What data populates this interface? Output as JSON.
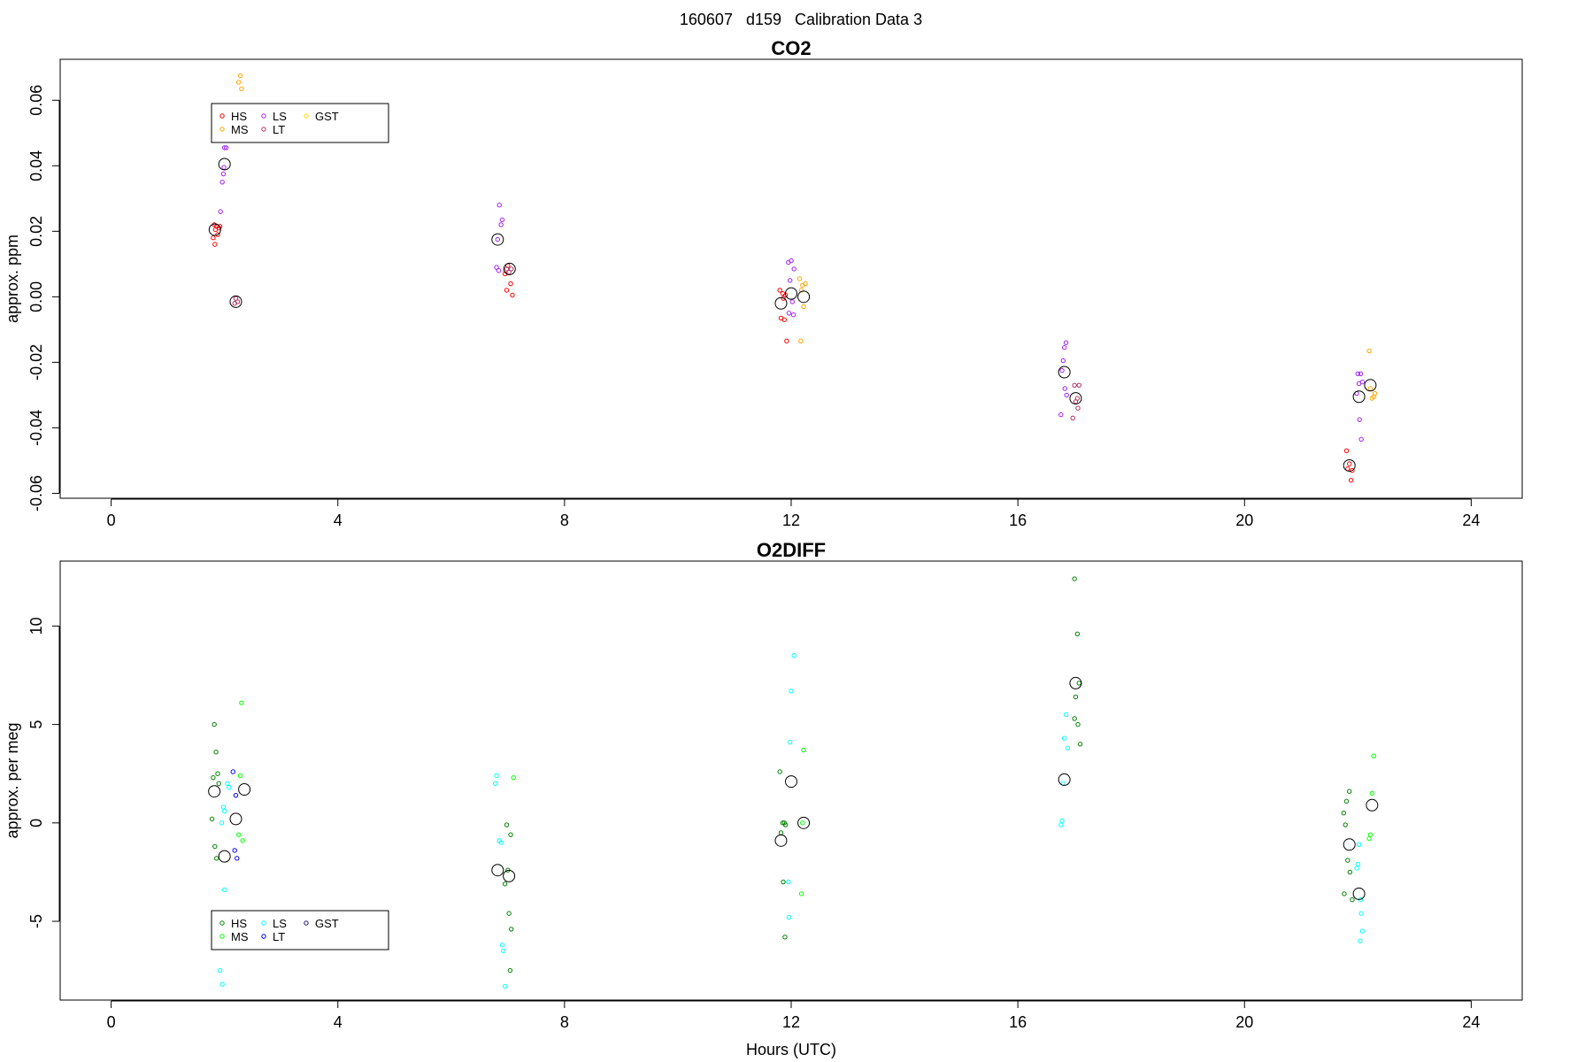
{
  "figure_title": "160607   d159   Calibration Data 3",
  "chart_data": [
    {
      "type": "scatter",
      "title": "CO2",
      "xlabel": "",
      "ylabel": "approx. ppm",
      "xlim": [
        -0.9,
        24.9
      ],
      "ylim": [
        -0.0615,
        0.0725
      ],
      "xticks": [
        0,
        4,
        8,
        12,
        16,
        20,
        24
      ],
      "yticks": [
        -0.06,
        -0.04,
        -0.02,
        0.0,
        0.02,
        0.04,
        0.06
      ],
      "ytick_labels": [
        "-0.06",
        "-0.04",
        "-0.02",
        "0.00",
        "0.02",
        "0.04",
        "0.06"
      ],
      "grid": false,
      "legend_position": "top-left",
      "legend_columns": [
        [
          "HS",
          "MS"
        ],
        [
          "LS",
          "LT"
        ],
        [
          "GST"
        ]
      ],
      "series": [
        {
          "name": "HS",
          "color": "#ff0000",
          "points": [
            [
              1.82,
              0.022
            ],
            [
              1.86,
              0.0215
            ],
            [
              1.9,
              0.021
            ],
            [
              1.84,
              0.0205
            ],
            [
              1.88,
              0.019
            ],
            [
              1.8,
              0.018
            ],
            [
              1.83,
              0.016
            ],
            [
              1.92,
              0.0215
            ],
            [
              6.95,
              0.007
            ],
            [
              7.0,
              0.0095
            ],
            [
              7.05,
              0.004
            ],
            [
              6.98,
              0.002
            ],
            [
              7.08,
              0.0005
            ],
            [
              11.8,
              0.002
            ],
            [
              11.85,
              0.001
            ],
            [
              11.9,
              0.0005
            ],
            [
              11.82,
              -0.0065
            ],
            [
              11.88,
              -0.007
            ],
            [
              11.92,
              -0.0135
            ],
            [
              11.86,
              -0.0005
            ],
            [
              21.8,
              -0.047
            ],
            [
              21.85,
              -0.051
            ],
            [
              21.9,
              -0.053
            ],
            [
              21.88,
              -0.056
            ],
            [
              21.82,
              -0.0525
            ]
          ]
        },
        {
          "name": "MS",
          "color": "#ffa500",
          "points": [
            [
              2.28,
              0.0675
            ],
            [
              2.25,
              0.0655
            ],
            [
              2.3,
              0.0635
            ],
            [
              12.15,
              0.0055
            ],
            [
              12.2,
              0.0035
            ],
            [
              12.25,
              0.004
            ],
            [
              12.18,
              0.002
            ],
            [
              12.22,
              -0.003
            ],
            [
              12.17,
              -0.0135
            ],
            [
              22.2,
              -0.0165
            ],
            [
              22.22,
              -0.028
            ],
            [
              22.28,
              -0.0305
            ],
            [
              22.25,
              -0.031
            ],
            [
              22.3,
              -0.0295
            ]
          ]
        },
        {
          "name": "LS",
          "color": "#a020f0",
          "points": [
            [
              1.95,
              0.048
            ],
            [
              2.0,
              0.0455
            ],
            [
              2.03,
              0.0455
            ],
            [
              1.98,
              0.0375
            ],
            [
              1.96,
              0.035
            ],
            [
              1.93,
              0.026
            ],
            [
              1.99,
              0.0395
            ],
            [
              6.85,
              0.028
            ],
            [
              6.9,
              0.0235
            ],
            [
              6.88,
              0.022
            ],
            [
              6.82,
              0.0175
            ],
            [
              6.8,
              0.009
            ],
            [
              6.84,
              0.008
            ],
            [
              11.95,
              0.0105
            ],
            [
              12.0,
              0.011
            ],
            [
              12.05,
              0.0085
            ],
            [
              11.98,
              0.005
            ],
            [
              12.02,
              -0.0015
            ],
            [
              11.96,
              -0.005
            ],
            [
              12.04,
              -0.0055
            ],
            [
              16.85,
              -0.014
            ],
            [
              16.82,
              -0.0155
            ],
            [
              16.8,
              -0.0195
            ],
            [
              16.78,
              -0.0225
            ],
            [
              16.83,
              -0.028
            ],
            [
              16.86,
              -0.03
            ],
            [
              16.76,
              -0.036
            ],
            [
              22.0,
              -0.0235
            ],
            [
              22.05,
              -0.0235
            ],
            [
              22.02,
              -0.0265
            ],
            [
              22.08,
              -0.026
            ],
            [
              22.03,
              -0.0375
            ],
            [
              22.06,
              -0.0435
            ],
            [
              21.98,
              -0.0295
            ]
          ]
        },
        {
          "name": "LT",
          "color": "#b03060",
          "points": [
            [
              2.2,
              -0.0005
            ],
            [
              2.23,
              -0.0015
            ],
            [
              2.18,
              -0.002
            ],
            [
              6.98,
              0.0085
            ],
            [
              7.02,
              0.0075
            ],
            [
              7.06,
              0.0085
            ],
            [
              17.0,
              -0.027
            ],
            [
              17.05,
              -0.031
            ],
            [
              17.02,
              -0.032
            ],
            [
              17.08,
              -0.027
            ],
            [
              16.97,
              -0.037
            ],
            [
              17.06,
              -0.034
            ]
          ]
        },
        {
          "name": "GST",
          "color": "#ffd700",
          "points": []
        }
      ],
      "means": [
        [
          1.83,
          0.0205
        ],
        [
          2.0,
          0.0405
        ],
        [
          2.2,
          -0.0015
        ],
        [
          6.82,
          0.0175
        ],
        [
          7.03,
          0.0085
        ],
        [
          11.82,
          -0.002
        ],
        [
          12.0,
          0.001
        ],
        [
          12.22,
          0.0
        ],
        [
          16.82,
          -0.023
        ],
        [
          17.02,
          -0.031
        ],
        [
          21.85,
          -0.0515
        ],
        [
          22.02,
          -0.0305
        ],
        [
          22.22,
          -0.027
        ]
      ]
    },
    {
      "type": "scatter",
      "title": "O2DIFF",
      "xlabel": "Hours (UTC)",
      "ylabel": "approx. per meg",
      "xlim": [
        -0.9,
        24.9
      ],
      "ylim": [
        -9.0,
        13.3
      ],
      "xticks": [
        0,
        4,
        8,
        12,
        16,
        20,
        24
      ],
      "yticks": [
        -5,
        0,
        5,
        10
      ],
      "ytick_labels": [
        "-5",
        "0",
        "5",
        "10"
      ],
      "grid": false,
      "legend_position": "bottom-left",
      "legend_columns": [
        [
          "HS",
          "MS"
        ],
        [
          "LS",
          "LT"
        ],
        [
          "GST"
        ]
      ],
      "series": [
        {
          "name": "HS",
          "color": "#008000",
          "points": [
            [
              1.82,
              5.0
            ],
            [
              1.85,
              3.6
            ],
            [
              1.88,
              2.5
            ],
            [
              1.8,
              2.3
            ],
            [
              1.9,
              2.0
            ],
            [
              1.78,
              0.2
            ],
            [
              1.83,
              -1.2
            ],
            [
              1.86,
              -1.8
            ],
            [
              6.98,
              -0.1
            ],
            [
              7.05,
              -0.6
            ],
            [
              7.0,
              -2.4
            ],
            [
              6.95,
              -3.1
            ],
            [
              7.02,
              -4.6
            ],
            [
              7.06,
              -5.4
            ],
            [
              7.04,
              -7.5
            ],
            [
              11.8,
              2.6
            ],
            [
              11.85,
              0.0
            ],
            [
              11.88,
              0.0
            ],
            [
              11.9,
              -0.1
            ],
            [
              11.82,
              -0.5
            ],
            [
              11.86,
              -3.0
            ],
            [
              11.89,
              -5.8
            ],
            [
              17.0,
              12.4
            ],
            [
              17.05,
              9.6
            ],
            [
              17.08,
              7.1
            ],
            [
              17.02,
              6.4
            ],
            [
              17.0,
              5.3
            ],
            [
              17.06,
              5.0
            ],
            [
              17.1,
              4.0
            ],
            [
              21.85,
              1.6
            ],
            [
              21.8,
              1.1
            ],
            [
              21.75,
              0.5
            ],
            [
              21.78,
              -0.1
            ],
            [
              21.82,
              -1.9
            ],
            [
              21.86,
              -2.5
            ],
            [
              21.76,
              -3.6
            ],
            [
              21.9,
              -3.9
            ]
          ]
        },
        {
          "name": "MS",
          "color": "#00ff00",
          "points": [
            [
              2.3,
              6.1
            ],
            [
              2.28,
              2.4
            ],
            [
              2.25,
              -0.6
            ],
            [
              2.32,
              -0.9
            ],
            [
              7.1,
              2.3
            ],
            [
              12.22,
              3.7
            ],
            [
              12.2,
              0.0
            ],
            [
              12.18,
              -3.6
            ],
            [
              22.28,
              3.4
            ],
            [
              22.25,
              1.5
            ],
            [
              22.22,
              -0.6
            ],
            [
              22.2,
              -0.8
            ]
          ]
        },
        {
          "name": "LS",
          "color": "#00ffff",
          "points": [
            [
              2.05,
              2.0
            ],
            [
              2.08,
              1.8
            ],
            [
              1.98,
              0.8
            ],
            [
              2.0,
              0.6
            ],
            [
              1.95,
              0.0
            ],
            [
              2.0,
              -3.4
            ],
            [
              1.92,
              -7.5
            ],
            [
              1.96,
              -8.2
            ],
            [
              6.8,
              2.4
            ],
            [
              6.78,
              2.0
            ],
            [
              6.85,
              -0.9
            ],
            [
              6.88,
              -1.0
            ],
            [
              6.9,
              -6.2
            ],
            [
              6.92,
              -6.5
            ],
            [
              6.95,
              -8.3
            ],
            [
              12.05,
              8.5
            ],
            [
              12.0,
              6.7
            ],
            [
              11.98,
              4.1
            ],
            [
              11.95,
              -3.0
            ],
            [
              11.96,
              -4.8
            ],
            [
              16.85,
              5.5
            ],
            [
              16.82,
              4.3
            ],
            [
              16.88,
              3.8
            ],
            [
              16.8,
              2.0
            ],
            [
              16.78,
              0.1
            ],
            [
              16.76,
              -0.1
            ],
            [
              22.02,
              -1.1
            ],
            [
              22.0,
              -2.1
            ],
            [
              22.05,
              -3.9
            ],
            [
              22.06,
              -4.6
            ],
            [
              22.08,
              -5.5
            ],
            [
              22.04,
              -6.0
            ],
            [
              21.98,
              -2.3
            ]
          ]
        },
        {
          "name": "LT",
          "color": "#0000ff",
          "points": [
            [
              2.15,
              2.6
            ],
            [
              2.2,
              1.4
            ],
            [
              2.18,
              -1.4
            ],
            [
              2.22,
              -1.8
            ]
          ]
        },
        {
          "name": "GST",
          "color": "#191970",
          "points": []
        }
      ],
      "means": [
        [
          1.82,
          1.6
        ],
        [
          2.0,
          -1.7
        ],
        [
          2.2,
          0.2
        ],
        [
          2.35,
          1.7
        ],
        [
          6.82,
          -2.4
        ],
        [
          7.02,
          -2.7
        ],
        [
          11.82,
          -0.9
        ],
        [
          12.0,
          2.1
        ],
        [
          12.22,
          0.0
        ],
        [
          16.82,
          2.2
        ],
        [
          17.02,
          7.1
        ],
        [
          21.85,
          -1.1
        ],
        [
          22.02,
          -3.6
        ],
        [
          22.25,
          0.9
        ]
      ]
    }
  ]
}
